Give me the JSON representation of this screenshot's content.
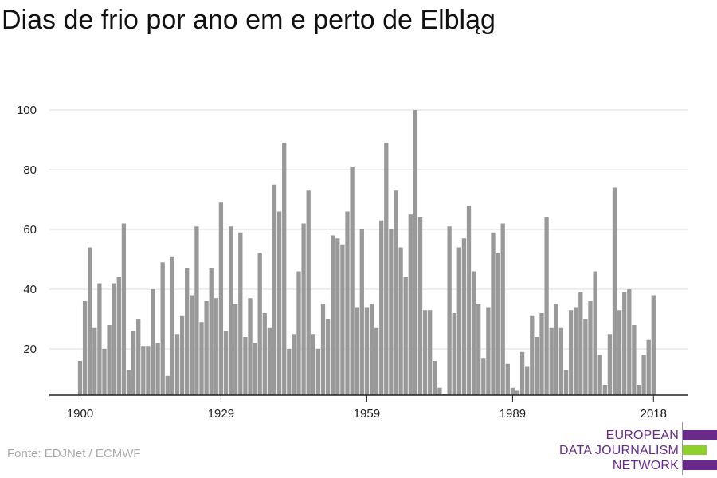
{
  "chart_data": {
    "type": "bar",
    "title": "Dias de frio por ano em e perto de Elbląg",
    "xlabel": "",
    "ylabel": "",
    "x_ticks": [
      "1900",
      "1929",
      "1959",
      "1989",
      "2018"
    ],
    "y_ticks": [
      20,
      40,
      60,
      80,
      100
    ],
    "ylim": [
      5,
      100
    ],
    "grid": true,
    "bar_color": "#999999",
    "years": [
      1900,
      1901,
      1902,
      1903,
      1904,
      1905,
      1906,
      1907,
      1908,
      1909,
      1910,
      1911,
      1912,
      1913,
      1914,
      1915,
      1916,
      1917,
      1918,
      1919,
      1920,
      1921,
      1922,
      1923,
      1924,
      1925,
      1926,
      1927,
      1928,
      1929,
      1930,
      1931,
      1932,
      1933,
      1934,
      1935,
      1936,
      1937,
      1938,
      1939,
      1940,
      1941,
      1942,
      1943,
      1944,
      1945,
      1946,
      1947,
      1948,
      1949,
      1950,
      1951,
      1952,
      1953,
      1954,
      1955,
      1956,
      1957,
      1958,
      1959,
      1960,
      1961,
      1962,
      1963,
      1964,
      1965,
      1966,
      1967,
      1968,
      1969,
      1970,
      1971,
      1972,
      1973,
      1974,
      1975,
      1976,
      1977,
      1978,
      1979,
      1980,
      1981,
      1982,
      1983,
      1984,
      1985,
      1986,
      1987,
      1988,
      1989,
      1990,
      1991,
      1992,
      1993,
      1994,
      1995,
      1996,
      1997,
      1998,
      1999,
      2000,
      2001,
      2002,
      2003,
      2004,
      2005,
      2006,
      2007,
      2008,
      2009,
      2010,
      2011,
      2012,
      2013,
      2014,
      2015,
      2016,
      2017,
      2018
    ],
    "values": [
      16,
      36,
      54,
      27,
      42,
      20,
      28,
      42,
      44,
      62,
      13,
      26,
      30,
      21,
      21,
      40,
      22,
      49,
      11,
      51,
      25,
      31,
      47,
      38,
      61,
      29,
      36,
      47,
      37,
      69,
      26,
      61,
      35,
      59,
      24,
      37,
      22,
      52,
      32,
      27,
      75,
      66,
      89,
      20,
      25,
      46,
      62,
      73,
      25,
      20,
      35,
      30,
      58,
      57,
      55,
      66,
      81,
      34,
      60,
      34,
      35,
      27,
      63,
      89,
      60,
      73,
      54,
      44,
      65,
      100,
      64,
      33,
      33,
      16,
      7,
      5,
      61,
      32,
      54,
      57,
      68,
      46,
      35,
      17,
      34,
      59,
      52,
      62,
      15,
      7,
      6,
      19,
      14,
      31,
      24,
      32,
      64,
      27,
      35,
      27,
      13,
      33,
      34,
      39,
      30,
      36,
      46,
      18,
      8,
      25,
      74,
      33,
      39,
      40,
      28,
      8,
      18,
      23,
      38
    ]
  },
  "source": "Fonte: EDJNet / ECMWF",
  "logo": {
    "line1": "EUROPEAN",
    "line2": "DATA JOURNALISM",
    "line3": "NETWORK",
    "color_purple": "#6a2a8c",
    "color_green": "#8fd12a"
  }
}
